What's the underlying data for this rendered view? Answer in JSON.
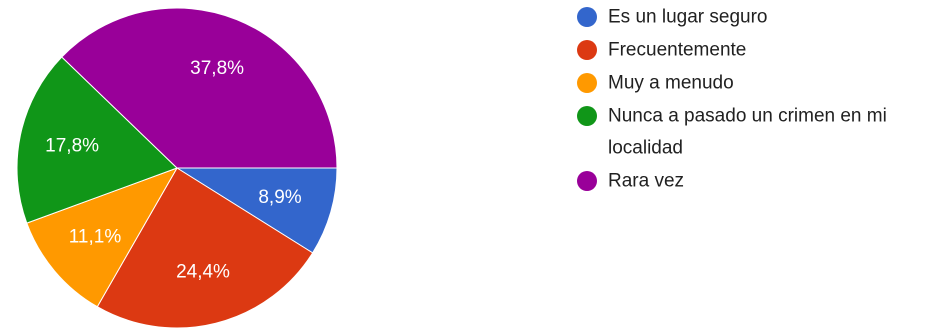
{
  "chart_data": {
    "type": "pie",
    "legend_position": "right",
    "series": [
      {
        "name": "Es un lugar seguro",
        "value": 8.9,
        "label": "8,9%",
        "color": "#3366cc"
      },
      {
        "name": "Frecuentemente",
        "value": 24.4,
        "label": "24,4%",
        "color": "#dc3912"
      },
      {
        "name": "Muy a menudo",
        "value": 11.1,
        "label": "11,1%",
        "color": "#ff9900"
      },
      {
        "name": "Nunca a pasado un crimen en mi localidad",
        "legend_lines": [
          "Nunca a pasado un crimen en mi",
          "localidad"
        ],
        "value": 17.8,
        "label": "17,8%",
        "color": "#109618"
      },
      {
        "name": "Rara vez",
        "value": 37.8,
        "label": "37,8%",
        "color": "#990099"
      }
    ]
  }
}
